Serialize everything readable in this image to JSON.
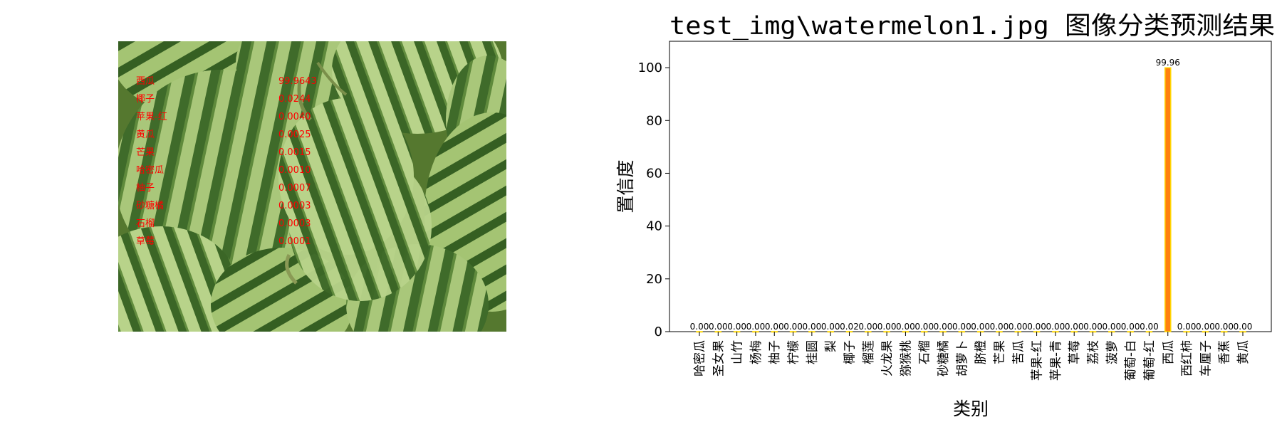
{
  "chart_data": {
    "type": "bar",
    "title": "test_img\\watermelon1.jpg 图像分类预测结果",
    "xlabel": "类别",
    "ylabel": "置信度",
    "ylim": [
      0,
      110
    ],
    "yticks": [
      0,
      20,
      40,
      60,
      80,
      100
    ],
    "categories": [
      "哈密瓜",
      "圣女果",
      "山竹",
      "杨梅",
      "柚子",
      "柠檬",
      "桂圆",
      "梨",
      "椰子",
      "榴莲",
      "火龙果",
      "猕猴桃",
      "石榴",
      "砂糖橘",
      "胡萝卜",
      "脐橙",
      "芒果",
      "苦瓜",
      "苹果-红",
      "苹果-青",
      "草莓",
      "荔枝",
      "菠萝",
      "葡萄-白",
      "葡萄-红",
      "西瓜",
      "西红柿",
      "车厘子",
      "香蕉",
      "黄瓜"
    ],
    "values": [
      0.0,
      0.0,
      0.0,
      0.0,
      0.0,
      0.0,
      0.0,
      0.0,
      0.02,
      0.0,
      0.0,
      0.0,
      0.0,
      0.0,
      0.0,
      0.0,
      0.0,
      0.0,
      0.0,
      0.0,
      0.0,
      0.0,
      0.0,
      0.0,
      0.0,
      99.96,
      0.0,
      0.0,
      0.0,
      0.0
    ],
    "value_labels": [
      "0.00",
      "0.00",
      "0.00",
      "0.00",
      "0.00",
      "0.00",
      "0.00",
      "0.00",
      "0.02",
      "0.00",
      "0.00",
      "0.00",
      "0.00",
      "0.00",
      "0.00",
      "0.00",
      "0.00",
      "0.00",
      "0.00",
      "0.00",
      "0.00",
      "0.00",
      "0.00",
      "0.00",
      "0.00",
      "99.96",
      "0.00",
      "0.00",
      "0.00",
      "0.00"
    ],
    "bar_color": "#ff7f0e",
    "highlight_color": "#ffd700",
    "grid": false,
    "legend": "none"
  },
  "photo": {
    "overlay_color": "#ff0000",
    "predictions": [
      {
        "label": "西瓜",
        "value": "99.9643"
      },
      {
        "label": "椰子",
        "value": "0.0244"
      },
      {
        "label": "苹果-红",
        "value": "0.0040"
      },
      {
        "label": "黄瓜",
        "value": "0.0025"
      },
      {
        "label": "芒果",
        "value": "0.0015"
      },
      {
        "label": "哈密瓜",
        "value": "0.0010"
      },
      {
        "label": "柚子",
        "value": "0.0007"
      },
      {
        "label": "砂糖橘",
        "value": "0.0003"
      },
      {
        "label": "石榴",
        "value": "0.0003"
      },
      {
        "label": "草莓",
        "value": "0.0001"
      }
    ]
  }
}
